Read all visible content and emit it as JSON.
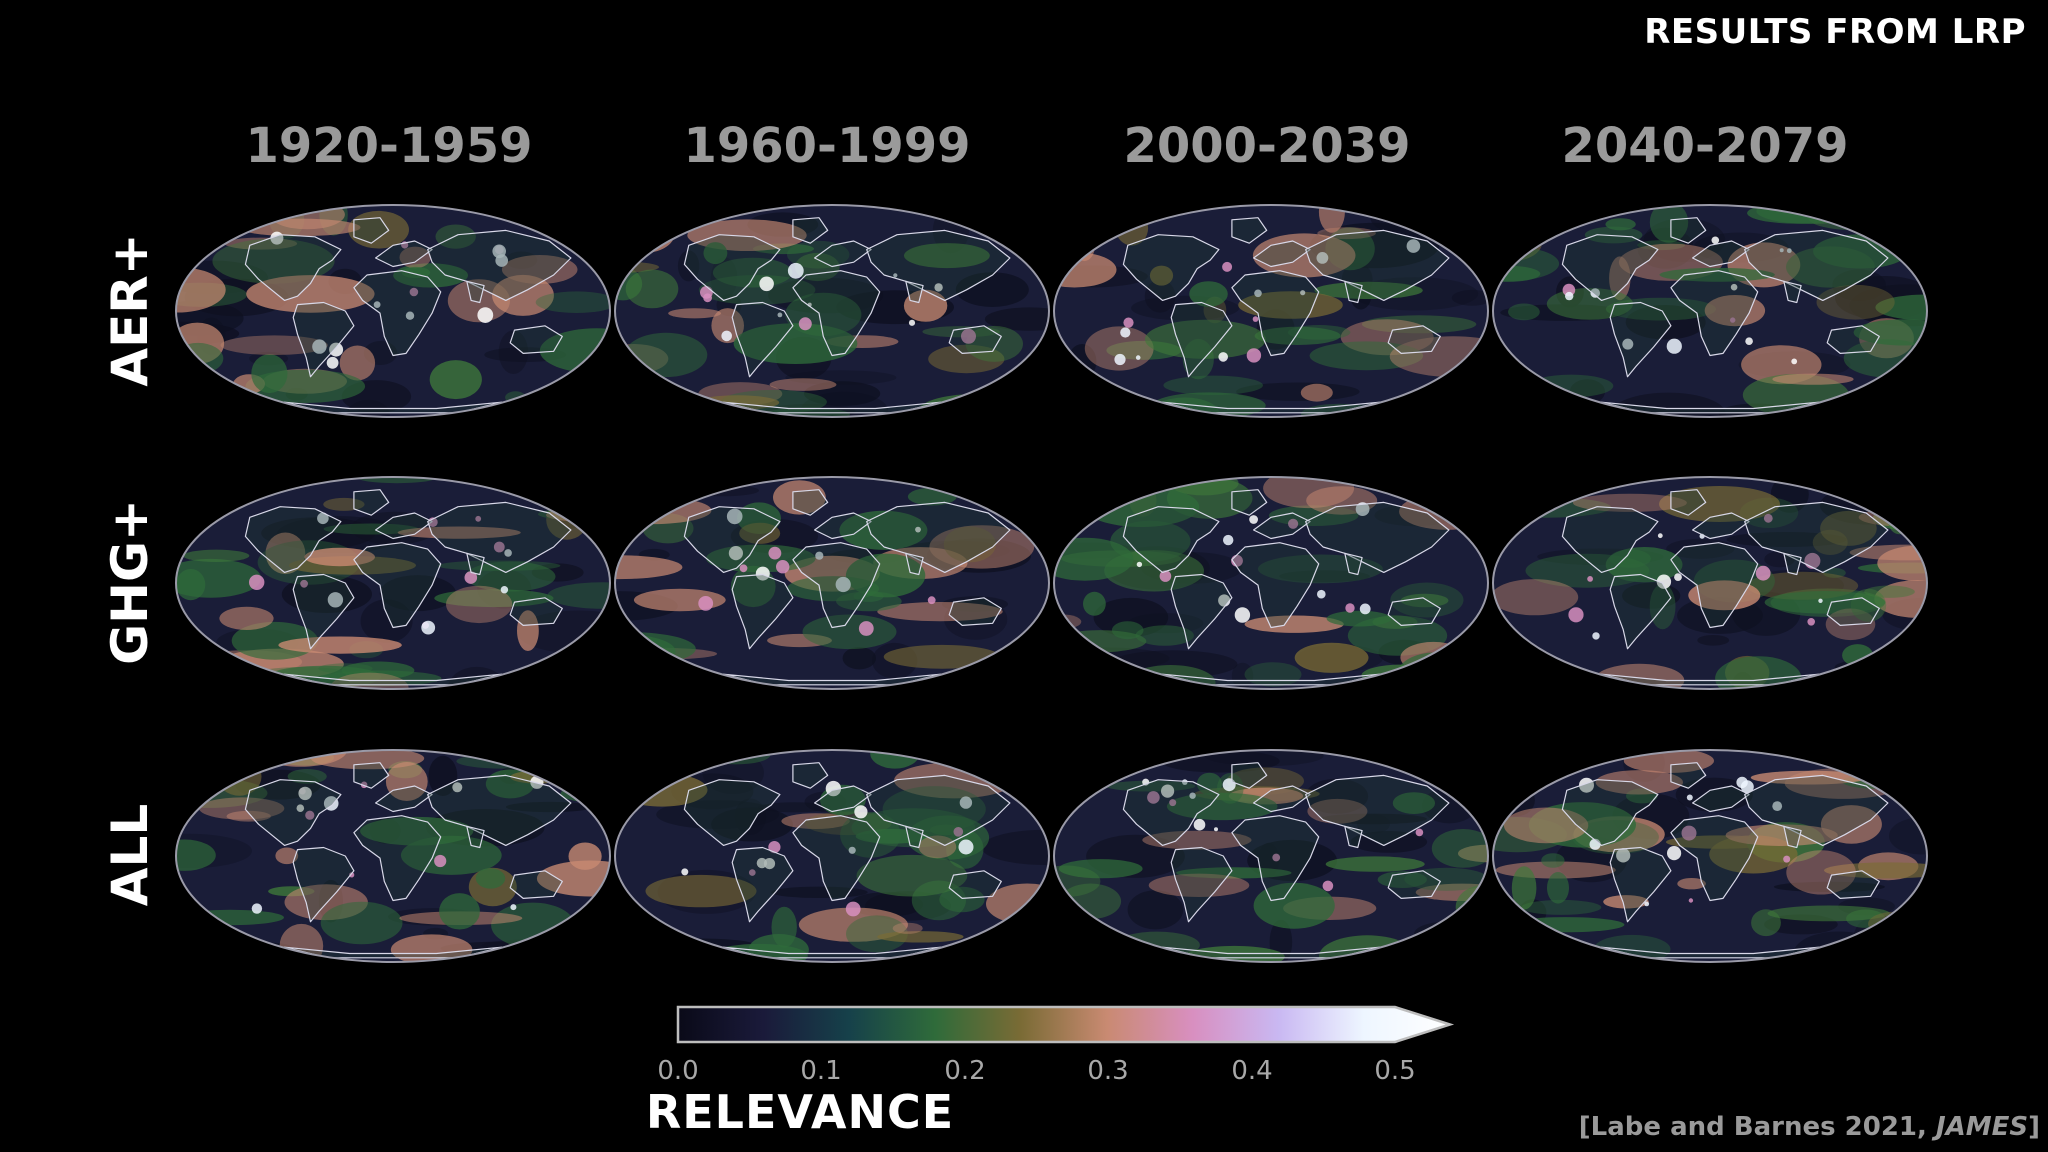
{
  "title": "RESULTS FROM LRP",
  "periods": [
    "1920-1959",
    "1960-1999",
    "2000-2039",
    "2040-2079"
  ],
  "rows": [
    "AER+",
    "GHG+",
    "ALL"
  ],
  "colorbar": {
    "title": "RELEVANCE",
    "ticks": [
      "0.0",
      "0.1",
      "0.2",
      "0.3",
      "0.4",
      "0.5"
    ],
    "range": [
      0.0,
      0.5
    ],
    "extend": "max",
    "colors": [
      "#0a0a18",
      "#1a1a3a",
      "#16414a",
      "#2f6b3a",
      "#7a6b35",
      "#c98a72",
      "#d88fc0",
      "#c9b8f2",
      "#eef6ff",
      "#ffffff"
    ]
  },
  "citation": {
    "text": "[Labe and Barnes 2021, ",
    "journal": "JAMES",
    "close": "]"
  },
  "map_style": {
    "ocean_base": "#1a1d38",
    "coastline": "#d8d8e8",
    "projection": "mollweide"
  }
}
